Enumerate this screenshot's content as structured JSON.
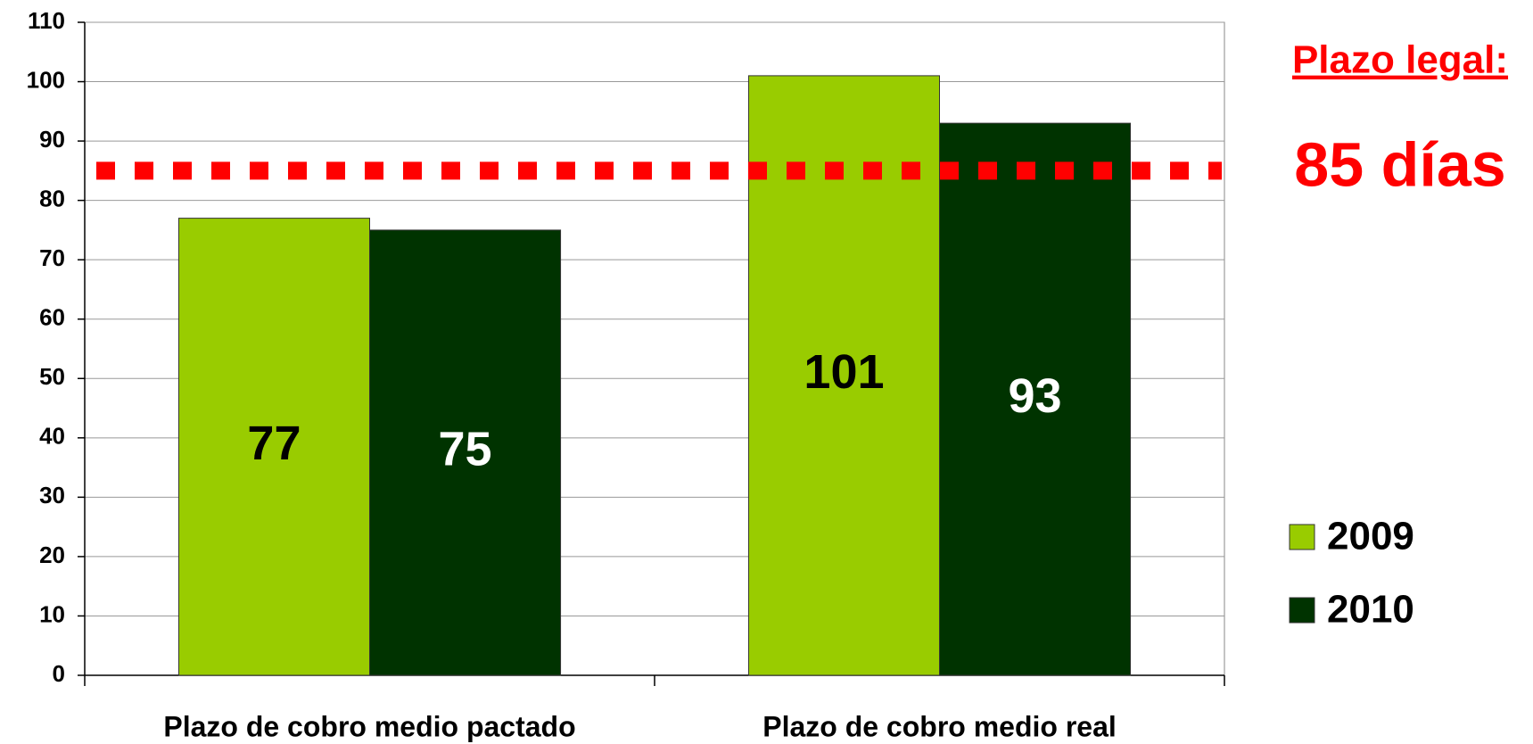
{
  "chart_data": {
    "type": "bar",
    "categories": [
      "Plazo de cobro medio pactado",
      "Plazo de cobro medio real"
    ],
    "series": [
      {
        "name": "2009",
        "color": "#99cc00",
        "label_color": "#000000",
        "values": [
          77,
          101
        ]
      },
      {
        "name": "2010",
        "color": "#003300",
        "label_color": "#ffffff",
        "values": [
          75,
          93
        ]
      }
    ],
    "ylim": [
      0,
      110
    ],
    "yticks": [
      0,
      10,
      20,
      30,
      40,
      50,
      60,
      70,
      80,
      90,
      100,
      110
    ],
    "grid": true,
    "reference_line": {
      "value": 85,
      "color": "#ff0000"
    },
    "annotations": [
      "Plazo legal:",
      "85 días"
    ],
    "legend": "right"
  }
}
